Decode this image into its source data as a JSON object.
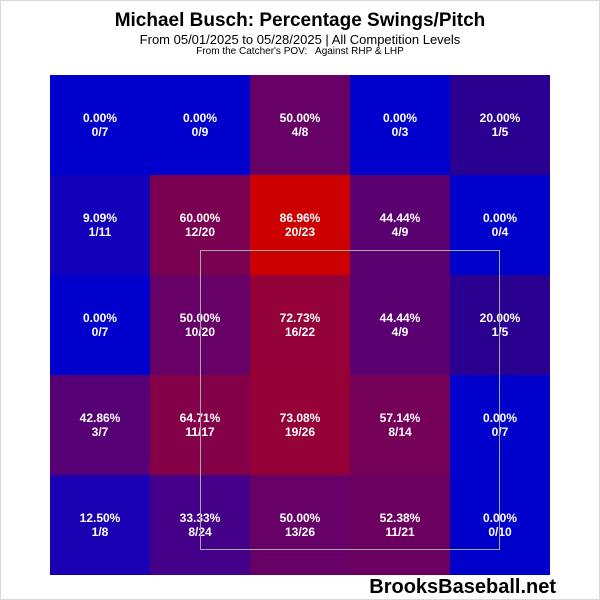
{
  "chart_data": {
    "type": "heatmap",
    "title": "Michael Busch: Percentage Swings/Pitch",
    "subtitle": "From 05/01/2025 to 05/28/2025 | All Competition Levels",
    "subtitle2": "From the Catcher's POV:   Against RHP & LHP",
    "brand": "BrooksBaseball.net",
    "strike_zone": {
      "rows": [
        1,
        3
      ],
      "cols": [
        1,
        3
      ]
    },
    "rows": [
      [
        {
          "pct": "0.00%",
          "ratio": "0/7",
          "color": "#0000cc"
        },
        {
          "pct": "0.00%",
          "ratio": "0/9",
          "color": "#0000cc"
        },
        {
          "pct": "50.00%",
          "ratio": "4/8",
          "color": "#660066"
        },
        {
          "pct": "0.00%",
          "ratio": "0/3",
          "color": "#0000cc"
        },
        {
          "pct": "20.00%",
          "ratio": "1/5",
          "color": "#29008f"
        }
      ],
      [
        {
          "pct": "9.09%",
          "ratio": "1/11",
          "color": "#1200ba"
        },
        {
          "pct": "60.00%",
          "ratio": "12/20",
          "color": "#7a0052"
        },
        {
          "pct": "86.96%",
          "ratio": "20/23",
          "color": "#cc0000"
        },
        {
          "pct": "44.44%",
          "ratio": "4/9",
          "color": "#5b0071"
        },
        {
          "pct": "0.00%",
          "ratio": "0/4",
          "color": "#0000cc"
        }
      ],
      [
        {
          "pct": "0.00%",
          "ratio": "0/7",
          "color": "#0000cc"
        },
        {
          "pct": "50.00%",
          "ratio": "10/20",
          "color": "#660066"
        },
        {
          "pct": "72.73%",
          "ratio": "16/22",
          "color": "#940038"
        },
        {
          "pct": "44.44%",
          "ratio": "4/9",
          "color": "#5b0071"
        },
        {
          "pct": "20.00%",
          "ratio": "1/5",
          "color": "#29008f"
        }
      ],
      [
        {
          "pct": "42.86%",
          "ratio": "3/7",
          "color": "#570075"
        },
        {
          "pct": "64.71%",
          "ratio": "11/17",
          "color": "#840048"
        },
        {
          "pct": "73.08%",
          "ratio": "19/26",
          "color": "#950037"
        },
        {
          "pct": "57.14%",
          "ratio": "8/14",
          "color": "#750057"
        },
        {
          "pct": "0.00%",
          "ratio": "0/7",
          "color": "#0000cc"
        }
      ],
      [
        {
          "pct": "12.50%",
          "ratio": "1/8",
          "color": "#1a00b2"
        },
        {
          "pct": "33.33%",
          "ratio": "8/24",
          "color": "#440088"
        },
        {
          "pct": "50.00%",
          "ratio": "13/26",
          "color": "#660066"
        },
        {
          "pct": "52.38%",
          "ratio": "11/21",
          "color": "#6b0061"
        },
        {
          "pct": "0.00%",
          "ratio": "0/10",
          "color": "#0000cc"
        }
      ]
    ]
  }
}
